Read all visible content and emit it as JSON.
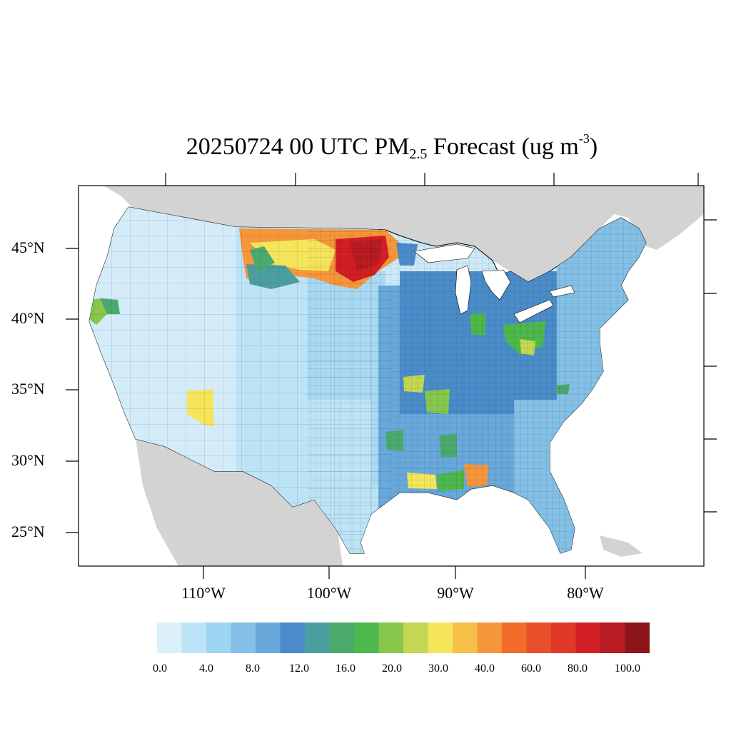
{
  "title": {
    "main": "20250724 00 UTC PM",
    "subscript": "2.5",
    "after": " Forecast (ug m",
    "superscript": "-3",
    "close": ")"
  },
  "axes": {
    "lat_labels": [
      "45°N",
      "40°N",
      "35°N",
      "30°N",
      "25°N"
    ],
    "lon_labels": [
      "110°W",
      "100°W",
      "90°W",
      "80°W"
    ]
  },
  "colorbar": {
    "labels": [
      "0.0",
      "4.0",
      "8.0",
      "12.0",
      "16.0",
      "20.0",
      "30.0",
      "40.0",
      "60.0",
      "80.0",
      "100.0"
    ],
    "colors": [
      "#dcf0fa",
      "#bde3f6",
      "#9dd5f2",
      "#84c0e6",
      "#68a8da",
      "#4a8cc9",
      "#4b9ea0",
      "#4aaa6e",
      "#4db84c",
      "#86c74c",
      "#c4d752",
      "#f5e55a",
      "#f6c049",
      "#f6963a",
      "#f26c2c",
      "#e84f2a",
      "#de3a26",
      "#d21f26",
      "#b81b22",
      "#8c151a"
    ]
  },
  "colors": {
    "background_land": "#d3d3d3",
    "water": "#ffffff",
    "low": "#cde9f8",
    "moderate": "#4a8cc9",
    "high": "#d21f26"
  },
  "regions": [
    {
      "name": "west-clean",
      "color": "#d4ecf9"
    },
    {
      "name": "mountain-west",
      "color": "#bde3f6"
    },
    {
      "name": "plains",
      "color": "#a9d9f3"
    },
    {
      "name": "texas",
      "color": "#bde3f6"
    },
    {
      "name": "southeast",
      "color": "#68a8da"
    },
    {
      "name": "midwest",
      "color": "#4a8cc9"
    },
    {
      "name": "northeast",
      "color": "#84c0e6"
    },
    {
      "name": "dakota-smoke",
      "color": "#f6963a"
    },
    {
      "name": "dakota-core",
      "color": "#d21f26"
    },
    {
      "name": "arizona-hotspot",
      "color": "#f5e55a"
    },
    {
      "name": "california-hotspot",
      "color": "#86c74c"
    },
    {
      "name": "gulf-hotspot",
      "color": "#f6963a"
    },
    {
      "name": "ohio-hotspot",
      "color": "#4db84c"
    },
    {
      "name": "arkansas-hotspot",
      "color": "#c4d752"
    }
  ]
}
